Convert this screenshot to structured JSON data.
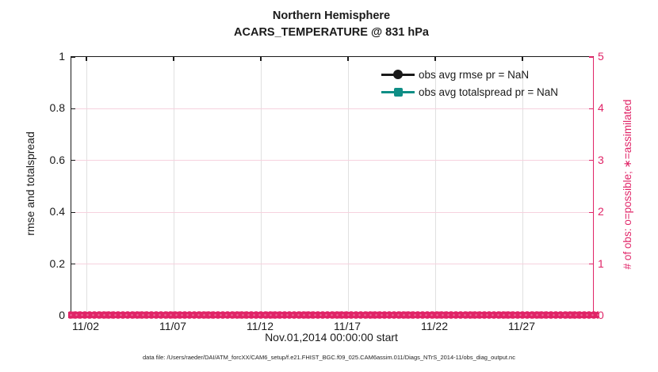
{
  "titles": {
    "line1": "Northern Hemisphere",
    "line2": "ACARS_TEMPERATURE @ 831 hPa"
  },
  "axes": {
    "left": {
      "label": "rmse and totalspread",
      "ticks": [
        "1",
        "0.8",
        "0.6",
        "0.4",
        "0.2",
        "0"
      ]
    },
    "right": {
      "label": "# of obs: o=possible; ∗=assimilated",
      "ticks": [
        "5",
        "4",
        "3",
        "2",
        "1",
        "0"
      ]
    },
    "x": {
      "label": "Nov.01,2014 00:00:00 start",
      "ticks": [
        "11/02",
        "11/07",
        "11/12",
        "11/17",
        "11/22",
        "11/27"
      ]
    }
  },
  "legend": {
    "entries": [
      {
        "label": "obs avg rmse pr = NaN",
        "marker": "circle",
        "color_key": "ink"
      },
      {
        "label": "obs avg totalspread pr = NaN",
        "marker": "square",
        "color_key": "teal"
      }
    ]
  },
  "footer": {
    "text": "data file: /Users/raeder/DAI/ATM_forcXX/CAM6_setup/f.e21.FHIST_BGC.f09_025.CAM6assim.011/Diags_NTrS_2014-11/obs_diag_output.nc"
  },
  "colors": {
    "crimson": "#e02467",
    "teal": "#0f8e86",
    "grid_pink": "#f6d2de",
    "grid_gray": "#e0e0e0",
    "ink": "#1a1a1a"
  },
  "chart_data": {
    "type": "line",
    "title": "Northern Hemisphere",
    "subtitle": "ACARS_TEMPERATURE @ 831 hPa",
    "xlabel": "Nov.01,2014 00:00:00 start",
    "x_ticks": [
      "11/02",
      "11/07",
      "11/12",
      "11/17",
      "11/22",
      "11/27"
    ],
    "x_range": [
      "2014-11-01",
      "2014-12-01"
    ],
    "left_axis": {
      "label": "rmse and totalspread",
      "ylim": [
        0,
        1
      ]
    },
    "right_axis": {
      "label": "# of obs: o=possible; ∗=assimilated",
      "ylim": [
        0,
        5
      ]
    },
    "grid": true,
    "legend_position": "upper right, no box",
    "series": [
      {
        "name": "obs avg rmse pr = NaN",
        "axis": "left",
        "marker": "filled circle",
        "color": "#1a1a1a",
        "values": [],
        "note": "all values NaN, nothing plotted"
      },
      {
        "name": "obs avg totalspread pr = NaN",
        "axis": "left",
        "marker": "filled square",
        "color": "#0f8e86",
        "values": [],
        "note": "all values NaN, nothing plotted"
      },
      {
        "name": "# of obs possible (o)",
        "axis": "right",
        "marker": "o",
        "color": "#e02467",
        "constant_value": 0,
        "note": "dense row of markers at 0 across entire date range"
      },
      {
        "name": "# of obs assimilated (*)",
        "axis": "right",
        "marker": "*",
        "color": "#e02467",
        "constant_value": 0,
        "note": "dense row of markers at 0 across entire date range"
      }
    ]
  }
}
